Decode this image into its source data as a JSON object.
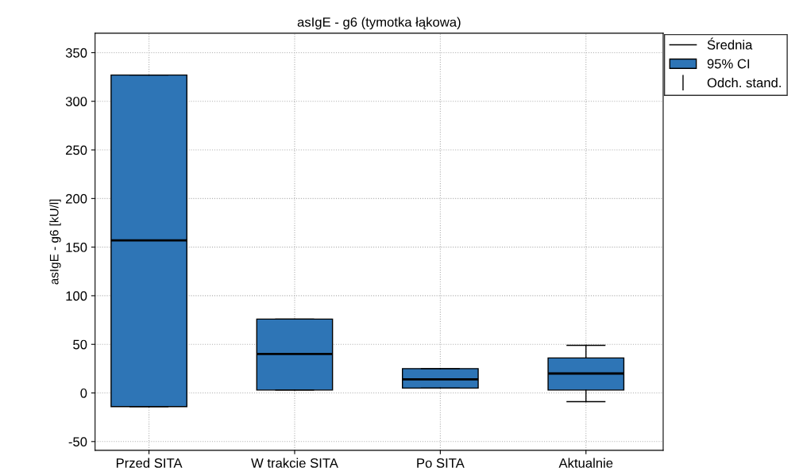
{
  "chart_data": {
    "type": "box",
    "title": "asIgE - g6 (tymotka łąkowa)",
    "ylabel": "asIgE - g6 [kU/l]",
    "categories": [
      "Przed SITA",
      "W trakcie SITA",
      "Po SITA",
      "Aktualnie"
    ],
    "series": [
      {
        "name": "95% CI",
        "color": "#2e75b6",
        "boxes": [
          {
            "low": -14,
            "q1": -14,
            "median": 157,
            "q3": 327,
            "high": 327
          },
          {
            "low": 3,
            "q1": 3,
            "median": 40,
            "q3": 76,
            "high": 76
          },
          {
            "low": 5,
            "q1": 5,
            "median": 14,
            "q3": 25,
            "high": 25
          },
          {
            "low": -9,
            "q1": 3,
            "median": 20,
            "q3": 36,
            "high": 49
          }
        ]
      }
    ],
    "annotations": [
      "Średnia",
      "Odch. stand."
    ],
    "ylim": [
      -59,
      370
    ],
    "yticks": [
      -50,
      0,
      50,
      100,
      150,
      200,
      250,
      300,
      350
    ],
    "grid": true,
    "legend": "top right"
  }
}
